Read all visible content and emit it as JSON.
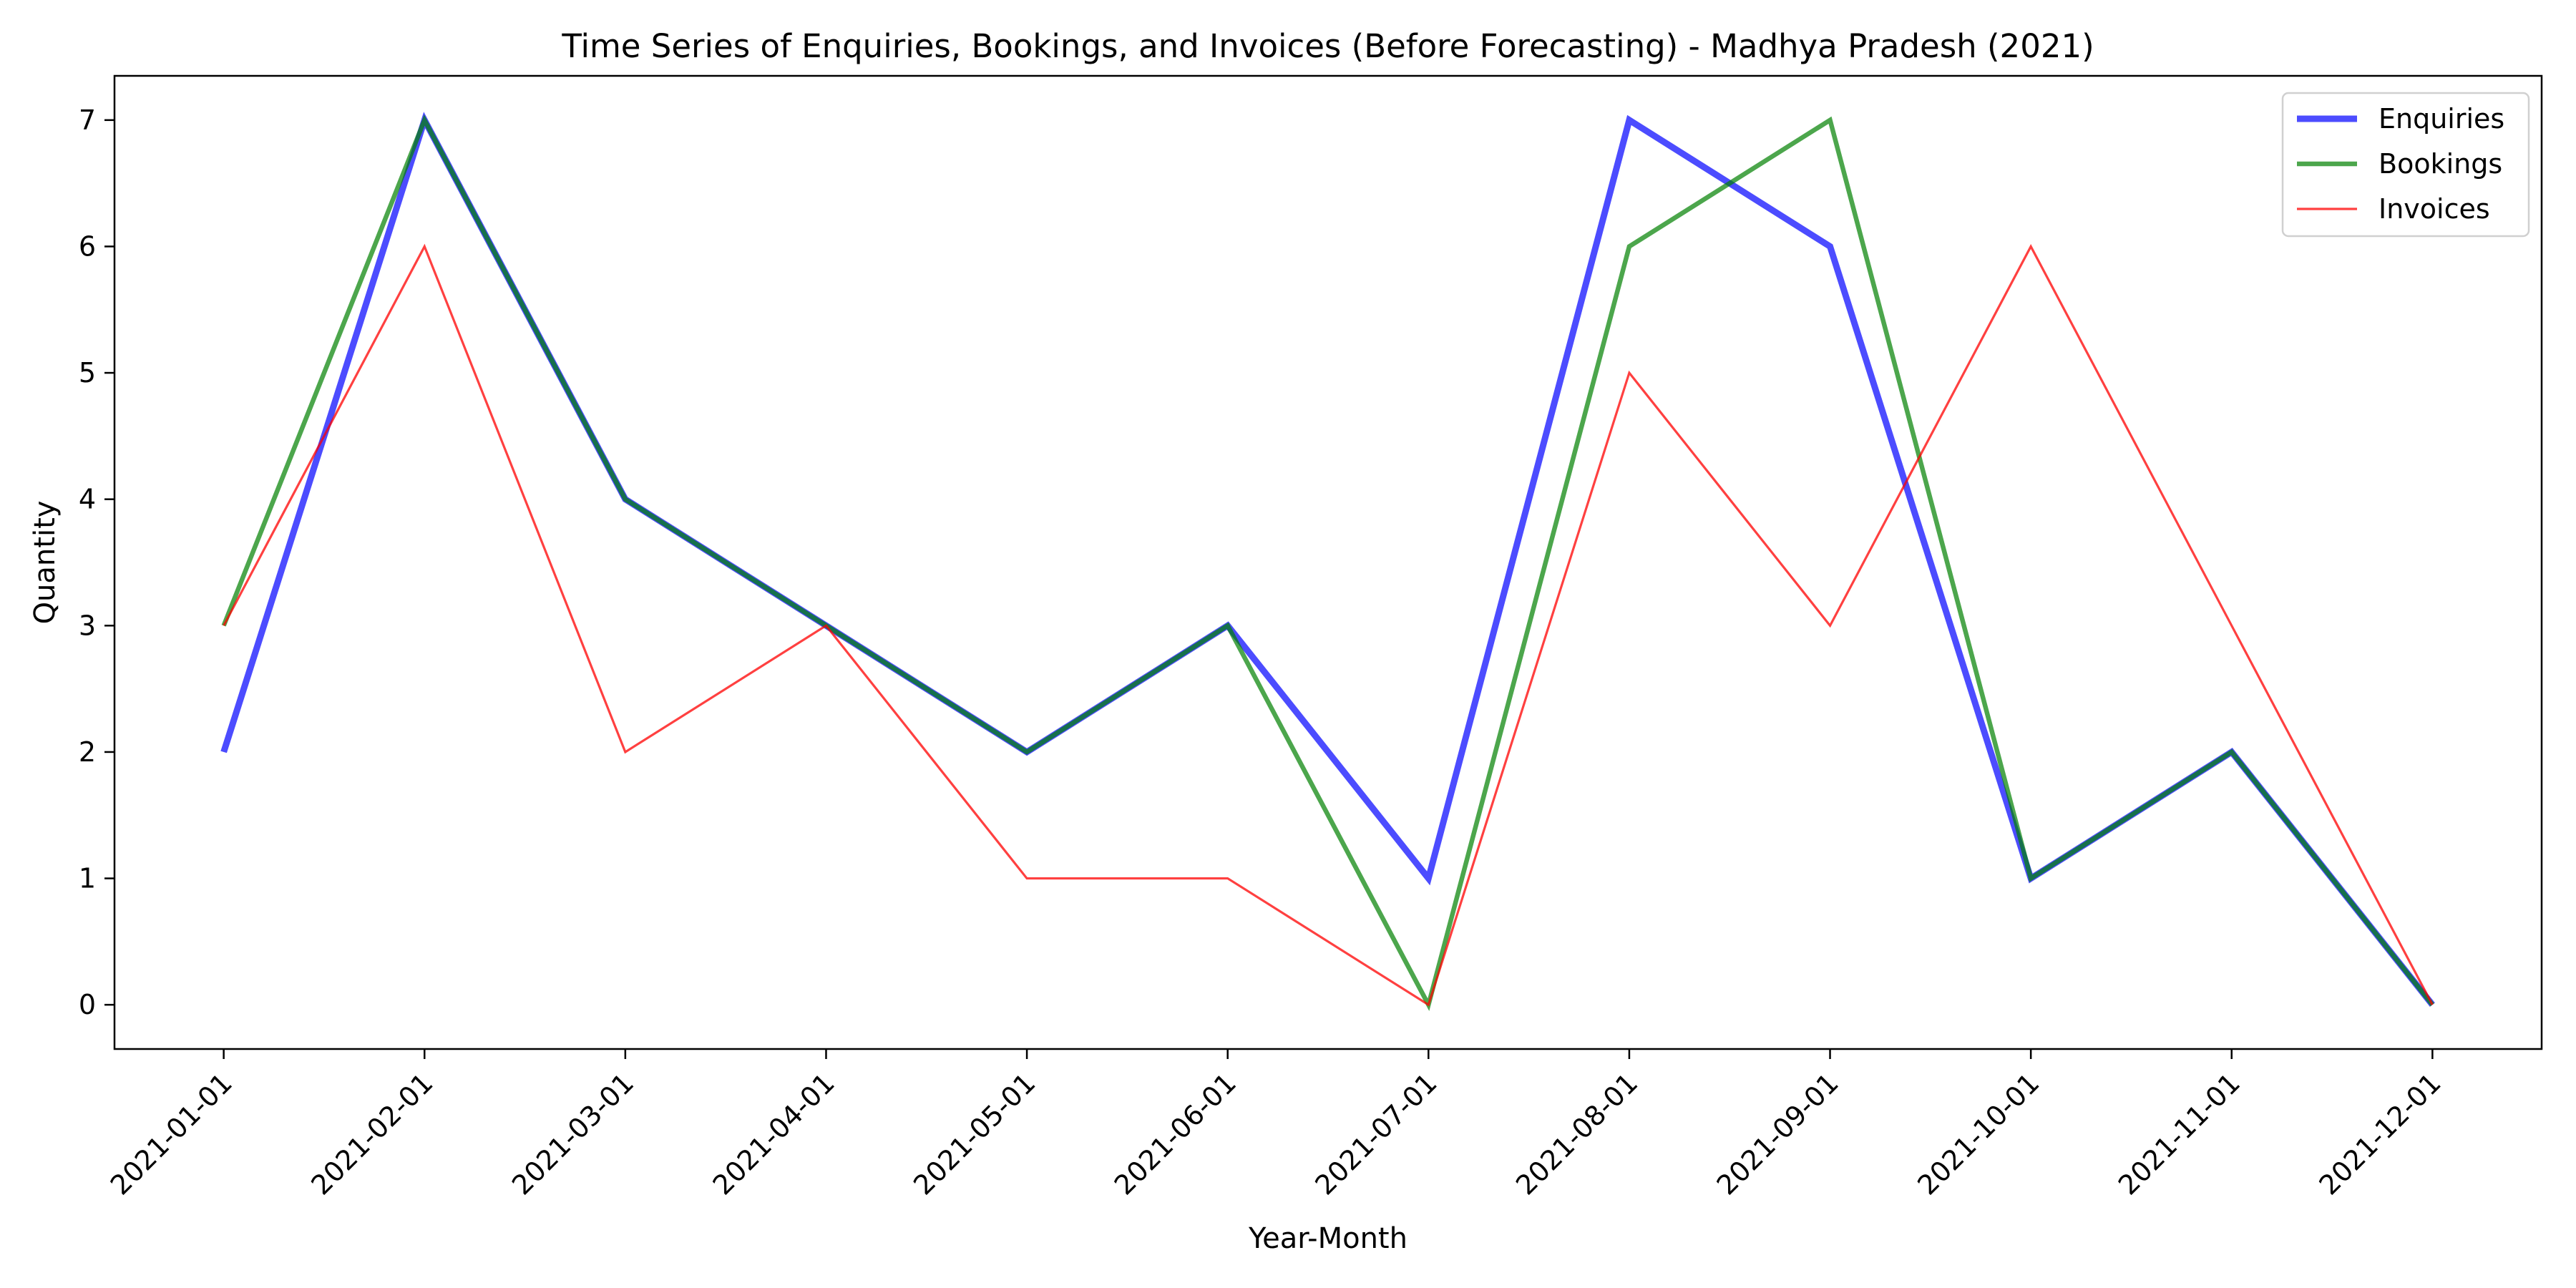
{
  "chart_data": {
    "type": "line",
    "title": "Time Series of Enquiries, Bookings, and Invoices (Before Forecasting) - Madhya Pradesh (2021)",
    "xlabel": "Year-Month",
    "ylabel": "Quantity",
    "categories": [
      "2021-01-01",
      "2021-02-01",
      "2021-03-01",
      "2021-04-01",
      "2021-05-01",
      "2021-06-01",
      "2021-07-01",
      "2021-08-01",
      "2021-09-01",
      "2021-10-01",
      "2021-11-01",
      "2021-12-01"
    ],
    "ylim": [
      -0.35,
      7.35
    ],
    "yticks": [
      0,
      1,
      2,
      3,
      4,
      5,
      6,
      7
    ],
    "grid": false,
    "legend_position": "top-right",
    "series": [
      {
        "name": "Enquiries",
        "values": [
          2,
          7,
          4,
          3,
          2,
          3,
          1,
          7,
          6,
          1,
          2,
          0
        ],
        "color": "#0000ff",
        "opacity": 0.7
      },
      {
        "name": "Bookings",
        "values": [
          3,
          7,
          4,
          3,
          2,
          3,
          0,
          6,
          7,
          1,
          2,
          0
        ],
        "color": "#008000",
        "opacity": 0.7
      },
      {
        "name": "Invoices",
        "values": [
          3,
          6,
          2,
          3,
          1,
          1,
          0,
          5,
          3,
          6,
          3,
          0
        ],
        "color": "#ff0000",
        "opacity": 0.75
      }
    ]
  }
}
